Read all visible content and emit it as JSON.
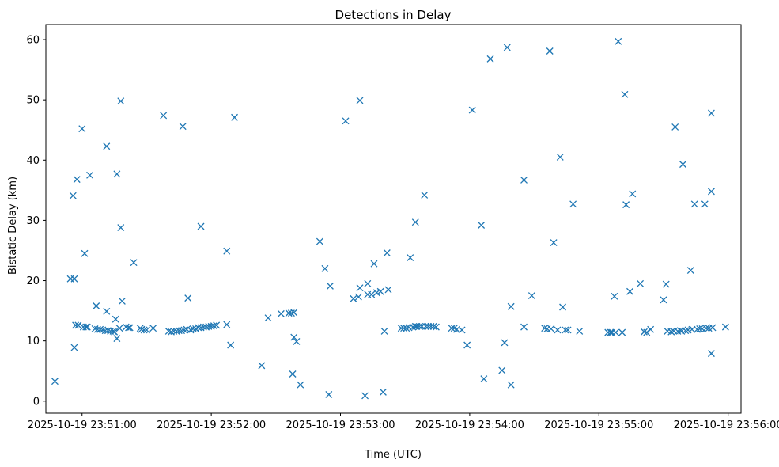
{
  "chart_data": {
    "type": "scatter",
    "title": "Detections in Delay",
    "xlabel": "Time (UTC)",
    "ylabel": "Bistatic Delay (km)",
    "marker": "x",
    "color": "#1f77b4",
    "xlim": [
      -0.28,
      5.1
    ],
    "ylim": [
      -2,
      62.5
    ],
    "x_unit": "minutes after 2025-10-19 23:51:00",
    "xticks": [
      {
        "value": 0,
        "label": "2025-10-19 23:51:00"
      },
      {
        "value": 1,
        "label": "2025-10-19 23:52:00"
      },
      {
        "value": 2,
        "label": "2025-10-19 23:53:00"
      },
      {
        "value": 3,
        "label": "2025-10-19 23:54:00"
      },
      {
        "value": 4,
        "label": "2025-10-19 23:55:00"
      },
      {
        "value": 5,
        "label": "2025-10-19 23:56:00"
      }
    ],
    "yticks": [
      {
        "value": 0,
        "label": "0"
      },
      {
        "value": 10,
        "label": "10"
      },
      {
        "value": 20,
        "label": "20"
      },
      {
        "value": 30,
        "label": "30"
      },
      {
        "value": 40,
        "label": "40"
      },
      {
        "value": 50,
        "label": "50"
      },
      {
        "value": 60,
        "label": "60"
      }
    ],
    "points": [
      [
        -0.21,
        3.3
      ],
      [
        -0.09,
        20.3
      ],
      [
        -0.07,
        34.1
      ],
      [
        -0.06,
        20.3
      ],
      [
        -0.06,
        8.9
      ],
      [
        -0.05,
        12.6
      ],
      [
        -0.04,
        36.8
      ],
      [
        -0.03,
        12.6
      ],
      [
        0.0,
        45.2
      ],
      [
        0.01,
        12.3
      ],
      [
        0.02,
        24.5
      ],
      [
        0.03,
        12.3
      ],
      [
        0.04,
        12.3
      ],
      [
        0.06,
        37.5
      ],
      [
        0.1,
        12.0
      ],
      [
        0.11,
        15.8
      ],
      [
        0.12,
        11.9
      ],
      [
        0.14,
        11.9
      ],
      [
        0.16,
        11.8
      ],
      [
        0.18,
        11.7
      ],
      [
        0.19,
        14.9
      ],
      [
        0.19,
        42.3
      ],
      [
        0.2,
        11.7
      ],
      [
        0.22,
        11.6
      ],
      [
        0.24,
        11.6
      ],
      [
        0.25,
        11.5
      ],
      [
        0.26,
        13.6
      ],
      [
        0.27,
        37.7
      ],
      [
        0.27,
        10.4
      ],
      [
        0.29,
        12.1
      ],
      [
        0.3,
        28.8
      ],
      [
        0.3,
        49.8
      ],
      [
        0.31,
        16.6
      ],
      [
        0.34,
        12.3
      ],
      [
        0.36,
        12.2
      ],
      [
        0.37,
        12.2
      ],
      [
        0.4,
        23.0
      ],
      [
        0.45,
        12.1
      ],
      [
        0.46,
        11.9
      ],
      [
        0.48,
        11.8
      ],
      [
        0.5,
        11.8
      ],
      [
        0.55,
        12.1
      ],
      [
        0.63,
        47.4
      ],
      [
        0.67,
        11.6
      ],
      [
        0.69,
        11.5
      ],
      [
        0.71,
        11.6
      ],
      [
        0.73,
        11.6
      ],
      [
        0.75,
        11.7
      ],
      [
        0.77,
        11.7
      ],
      [
        0.78,
        45.6
      ],
      [
        0.79,
        11.8
      ],
      [
        0.81,
        11.9
      ],
      [
        0.82,
        17.1
      ],
      [
        0.84,
        11.8
      ],
      [
        0.86,
        12.0
      ],
      [
        0.88,
        12.0
      ],
      [
        0.9,
        12.2
      ],
      [
        0.92,
        12.2
      ],
      [
        0.92,
        29.0
      ],
      [
        0.94,
        12.3
      ],
      [
        0.96,
        12.3
      ],
      [
        0.98,
        12.4
      ],
      [
        1.0,
        12.4
      ],
      [
        1.02,
        12.5
      ],
      [
        1.04,
        12.6
      ],
      [
        1.12,
        24.9
      ],
      [
        1.12,
        12.7
      ],
      [
        1.15,
        9.3
      ],
      [
        1.18,
        47.1
      ],
      [
        1.39,
        5.9
      ],
      [
        1.44,
        13.8
      ],
      [
        1.54,
        14.5
      ],
      [
        1.6,
        14.6
      ],
      [
        1.62,
        14.6
      ],
      [
        1.63,
        4.5
      ],
      [
        1.64,
        14.7
      ],
      [
        1.64,
        10.6
      ],
      [
        1.66,
        9.9
      ],
      [
        1.69,
        2.7
      ],
      [
        1.84,
        26.5
      ],
      [
        1.88,
        22.0
      ],
      [
        1.91,
        1.1
      ],
      [
        1.92,
        19.1
      ],
      [
        2.04,
        46.5
      ],
      [
        2.1,
        17.0
      ],
      [
        2.14,
        17.3
      ],
      [
        2.15,
        18.8
      ],
      [
        2.15,
        49.9
      ],
      [
        2.19,
        0.9
      ],
      [
        2.21,
        19.5
      ],
      [
        2.21,
        17.7
      ],
      [
        2.24,
        17.7
      ],
      [
        2.26,
        22.8
      ],
      [
        2.28,
        18.0
      ],
      [
        2.31,
        18.2
      ],
      [
        2.33,
        1.5
      ],
      [
        2.34,
        11.6
      ],
      [
        2.36,
        24.6
      ],
      [
        2.37,
        18.5
      ],
      [
        2.47,
        12.1
      ],
      [
        2.49,
        12.1
      ],
      [
        2.51,
        12.1
      ],
      [
        2.53,
        12.2
      ],
      [
        2.54,
        23.8
      ],
      [
        2.56,
        12.3
      ],
      [
        2.58,
        29.7
      ],
      [
        2.58,
        12.4
      ],
      [
        2.59,
        12.4
      ],
      [
        2.61,
        12.4
      ],
      [
        2.63,
        12.4
      ],
      [
        2.65,
        34.2
      ],
      [
        2.66,
        12.4
      ],
      [
        2.68,
        12.4
      ],
      [
        2.7,
        12.4
      ],
      [
        2.72,
        12.4
      ],
      [
        2.74,
        12.3
      ],
      [
        2.86,
        12.1
      ],
      [
        2.88,
        12.1
      ],
      [
        2.9,
        11.9
      ],
      [
        2.94,
        11.8
      ],
      [
        2.98,
        9.3
      ],
      [
        3.02,
        48.3
      ],
      [
        3.09,
        29.2
      ],
      [
        3.11,
        3.7
      ],
      [
        3.16,
        56.8
      ],
      [
        3.25,
        5.1
      ],
      [
        3.27,
        9.7
      ],
      [
        3.29,
        58.7
      ],
      [
        3.32,
        15.7
      ],
      [
        3.32,
        2.7
      ],
      [
        3.42,
        12.3
      ],
      [
        3.42,
        36.7
      ],
      [
        3.48,
        17.5
      ],
      [
        3.58,
        12.1
      ],
      [
        3.6,
        12.0
      ],
      [
        3.62,
        58.1
      ],
      [
        3.63,
        12.0
      ],
      [
        3.65,
        26.3
      ],
      [
        3.68,
        11.8
      ],
      [
        3.7,
        40.5
      ],
      [
        3.72,
        15.6
      ],
      [
        3.74,
        11.8
      ],
      [
        3.76,
        11.8
      ],
      [
        3.8,
        32.7
      ],
      [
        3.85,
        11.6
      ],
      [
        4.07,
        11.4
      ],
      [
        4.09,
        11.4
      ],
      [
        4.1,
        11.4
      ],
      [
        4.12,
        17.4
      ],
      [
        4.13,
        11.4
      ],
      [
        4.15,
        59.7
      ],
      [
        4.18,
        11.4
      ],
      [
        4.2,
        50.9
      ],
      [
        4.21,
        32.6
      ],
      [
        4.24,
        18.2
      ],
      [
        4.26,
        34.4
      ],
      [
        4.32,
        19.5
      ],
      [
        4.35,
        11.5
      ],
      [
        4.37,
        11.4
      ],
      [
        4.4,
        11.9
      ],
      [
        4.5,
        16.8
      ],
      [
        4.52,
        19.4
      ],
      [
        4.53,
        11.6
      ],
      [
        4.56,
        11.5
      ],
      [
        4.58,
        11.6
      ],
      [
        4.59,
        45.5
      ],
      [
        4.61,
        11.6
      ],
      [
        4.63,
        11.7
      ],
      [
        4.64,
        11.6
      ],
      [
        4.65,
        39.3
      ],
      [
        4.67,
        11.7
      ],
      [
        4.69,
        11.8
      ],
      [
        4.71,
        21.7
      ],
      [
        4.72,
        11.9
      ],
      [
        4.74,
        32.7
      ],
      [
        4.76,
        11.9
      ],
      [
        4.78,
        12.0
      ],
      [
        4.8,
        12.0
      ],
      [
        4.82,
        32.7
      ],
      [
        4.83,
        12.1
      ],
      [
        4.85,
        12.1
      ],
      [
        4.87,
        7.9
      ],
      [
        4.87,
        47.8
      ],
      [
        4.87,
        34.8
      ],
      [
        4.88,
        12.2
      ],
      [
        4.98,
        12.3
      ]
    ]
  }
}
